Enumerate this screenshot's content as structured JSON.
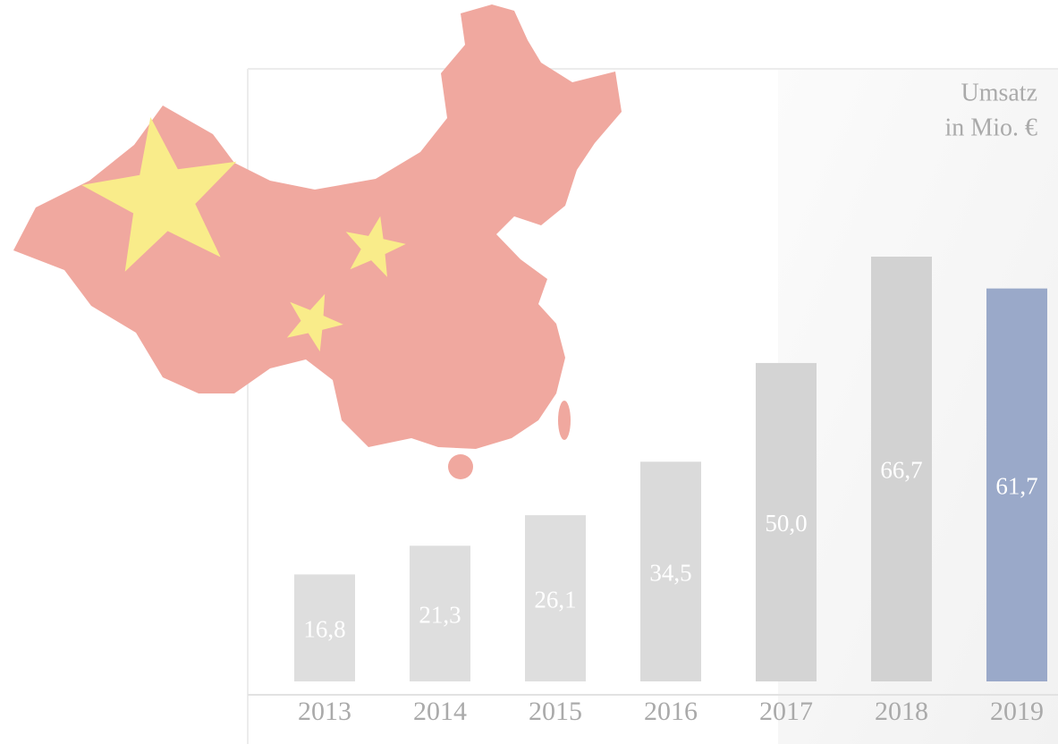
{
  "chart_data": {
    "type": "bar",
    "title": "Umsatz",
    "subtitle": "in Mio. €",
    "categories": [
      "2013",
      "2014",
      "2015",
      "2016",
      "2017",
      "2018",
      "2019"
    ],
    "values": [
      16.8,
      21.3,
      26.1,
      34.5,
      50.0,
      66.7,
      61.7
    ],
    "value_labels": [
      "16,8",
      "21,3",
      "26,1",
      "34,5",
      "50,0",
      "66,7",
      "61,7"
    ],
    "colors": [
      "#dedede",
      "#dedede",
      "#dedede",
      "#dadada",
      "#d4d4d4",
      "#d2d2d2",
      "#9aa9c9"
    ]
  }
}
